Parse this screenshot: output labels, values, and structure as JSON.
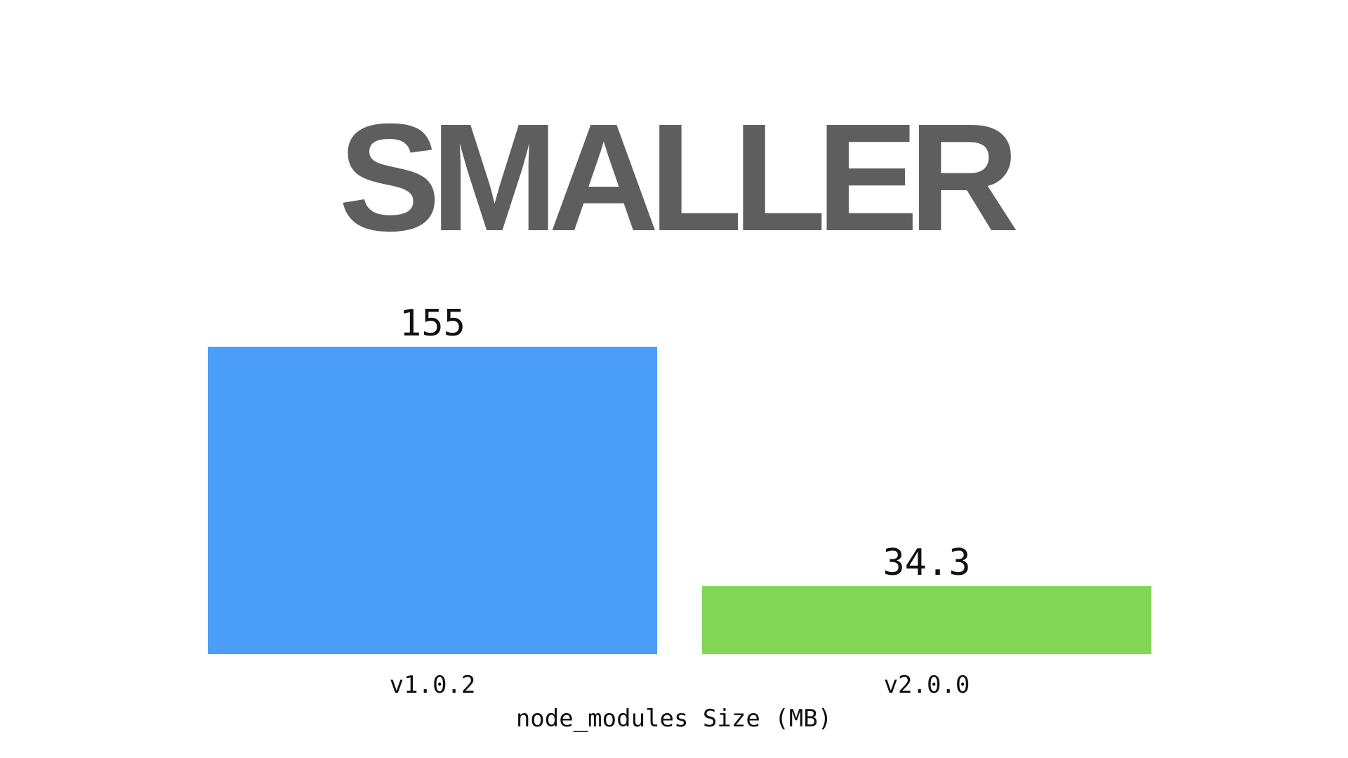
{
  "chart_data": {
    "type": "bar",
    "title": "SMALLER",
    "categories": [
      "v1.0.2",
      "v2.0.0"
    ],
    "values": [
      155,
      34.3
    ],
    "value_labels": [
      "155",
      "34.3"
    ],
    "xlabel": "node_modules Size (MB)",
    "ylabel": "",
    "ylim": [
      0,
      155
    ],
    "grid": false,
    "colors": [
      "#4a9ef7",
      "#82d656"
    ],
    "title_color": "#5e5e5e"
  }
}
